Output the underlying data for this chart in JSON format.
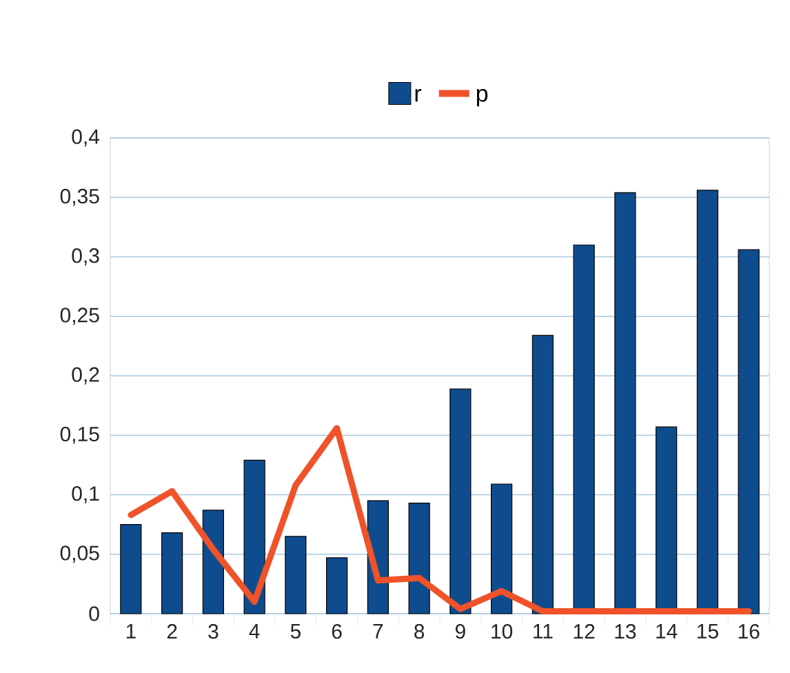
{
  "chart_data": {
    "type": "bar",
    "categories": [
      "1",
      "2",
      "3",
      "4",
      "5",
      "6",
      "7",
      "8",
      "9",
      "10",
      "11",
      "12",
      "13",
      "14",
      "15",
      "16"
    ],
    "series": [
      {
        "name": "r",
        "color": "#0f4c8e",
        "values": [
          0.075,
          0.068,
          0.087,
          0.129,
          0.065,
          0.047,
          0.095,
          0.093,
          0.189,
          0.109,
          0.234,
          0.31,
          0.354,
          0.157,
          0.356,
          0.306
        ]
      },
      {
        "name": "p",
        "type": "line",
        "color": "#f0522a",
        "values": [
          0.083,
          0.103,
          0.054,
          0.01,
          0.108,
          0.156,
          0.028,
          0.03,
          0.004,
          0.019,
          0.002,
          0.002,
          0.002,
          0.002,
          0.002,
          0.002
        ]
      }
    ],
    "ylim": [
      0,
      0.4
    ],
    "yticks": [
      0,
      {
        "value": 0.05,
        "label": "0,05"
      },
      {
        "value": 0.1,
        "label": "0,1"
      },
      {
        "value": 0.15,
        "label": "0,15"
      },
      {
        "value": 0.2,
        "label": "0,2"
      },
      {
        "value": 0.25,
        "label": "0,25"
      },
      {
        "value": 0.3,
        "label": "0,3"
      },
      {
        "value": 0.35,
        "label": "0,35"
      },
      {
        "value": 0.4,
        "label": "0,4"
      }
    ],
    "grid": "y",
    "legend": "top"
  }
}
